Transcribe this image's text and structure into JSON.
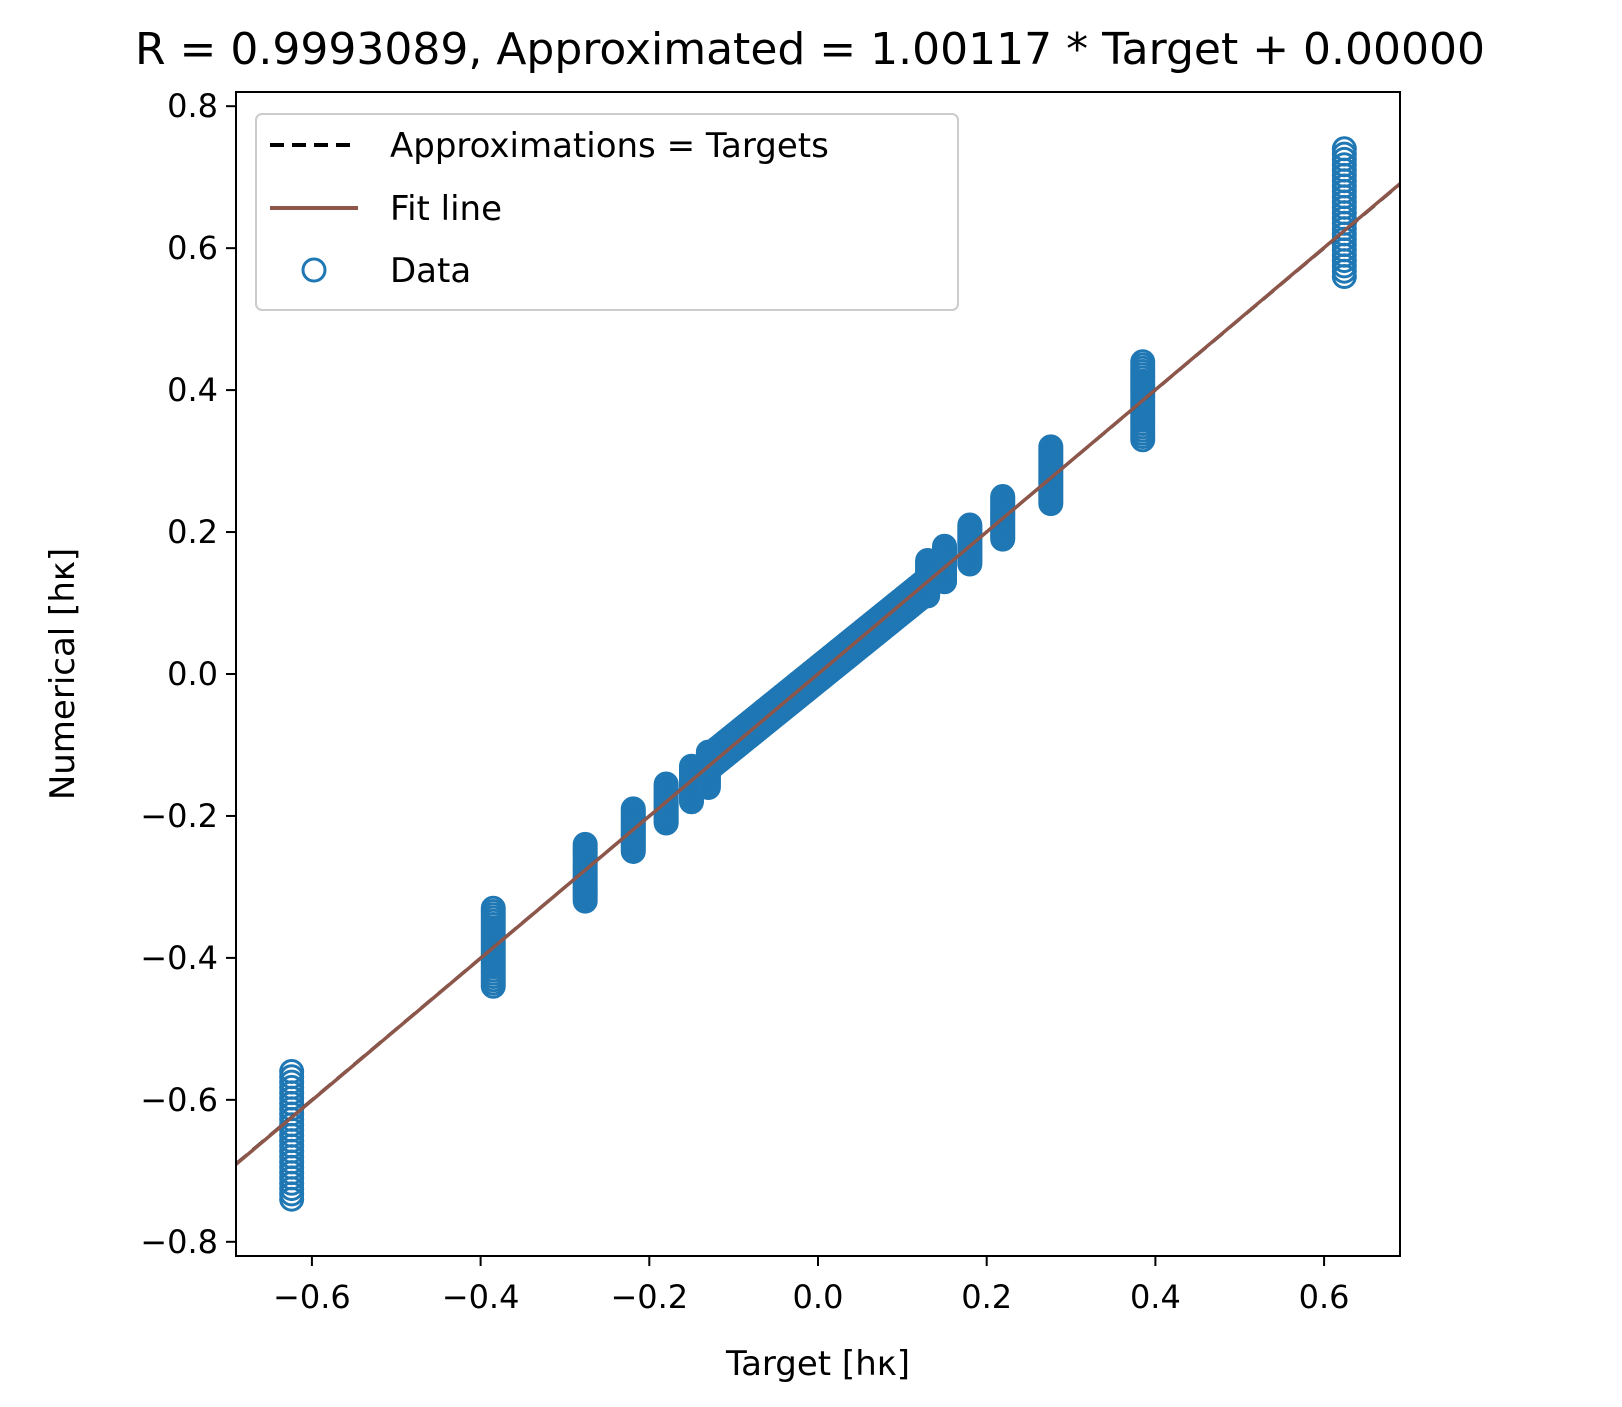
{
  "chart_data": {
    "type": "scatter",
    "title": "R = 0.9993089, Approximated = 1.00117 * Target + 0.00000",
    "xlabel": "Target [hκ]",
    "ylabel": "Numerical [hκ]",
    "xlim": [
      -0.69,
      0.69
    ],
    "ylim": [
      -0.82,
      0.82
    ],
    "xticks": [
      -0.6,
      -0.4,
      -0.2,
      0.0,
      0.2,
      0.4,
      0.6
    ],
    "xtick_labels": [
      "−0.6",
      "−0.4",
      "−0.2",
      "0.0",
      "0.2",
      "0.4",
      "0.6"
    ],
    "yticks": [
      -0.8,
      -0.6,
      -0.4,
      -0.2,
      0.0,
      0.2,
      0.4,
      0.6,
      0.8
    ],
    "ytick_labels": [
      "−0.8",
      "−0.6",
      "−0.4",
      "−0.2",
      "0.0",
      "0.2",
      "0.4",
      "0.6",
      "0.8"
    ],
    "grid": false,
    "legend_position": "top-left",
    "colors": {
      "data": "#1f77b4",
      "fit_line": "#8c564b",
      "identity_line": "#000000"
    },
    "series": [
      {
        "name": "Approximations = Targets",
        "kind": "line",
        "style": "dashed",
        "x": [
          -0.69,
          0.69
        ],
        "y": [
          -0.69,
          0.69
        ]
      },
      {
        "name": "Fit line",
        "kind": "line",
        "style": "solid",
        "slope": 1.00117,
        "intercept": 0.0,
        "x": [
          -0.69,
          0.69
        ],
        "y": [
          -0.6908,
          0.6908
        ]
      },
      {
        "name": "Data",
        "kind": "scatter",
        "marker": "open-circle",
        "clusters": [
          {
            "x": -0.624,
            "y_min": -0.74,
            "y_max": -0.56
          },
          {
            "x": -0.385,
            "y_min": -0.44,
            "y_max": -0.33
          },
          {
            "x": -0.276,
            "y_min": -0.32,
            "y_max": -0.24
          },
          {
            "x": -0.219,
            "y_min": -0.25,
            "y_max": -0.19
          },
          {
            "x": -0.18,
            "y_min": -0.21,
            "y_max": -0.155
          },
          {
            "x": -0.15,
            "y_min": -0.18,
            "y_max": -0.13
          },
          {
            "x": -0.13,
            "y_min": -0.16,
            "y_max": -0.11
          },
          {
            "x": 0.13,
            "y_min": 0.11,
            "y_max": 0.16
          },
          {
            "x": 0.15,
            "y_min": 0.13,
            "y_max": 0.18
          },
          {
            "x": 0.18,
            "y_min": 0.155,
            "y_max": 0.21
          },
          {
            "x": 0.219,
            "y_min": 0.19,
            "y_max": 0.25
          },
          {
            "x": 0.276,
            "y_min": 0.24,
            "y_max": 0.32
          },
          {
            "x": 0.385,
            "y_min": 0.33,
            "y_max": 0.44
          },
          {
            "x": 0.624,
            "y_min": 0.56,
            "y_max": 0.74
          }
        ],
        "band": {
          "x_min": -0.13,
          "x_max": 0.13,
          "y_spread": 0.02
        }
      }
    ]
  }
}
